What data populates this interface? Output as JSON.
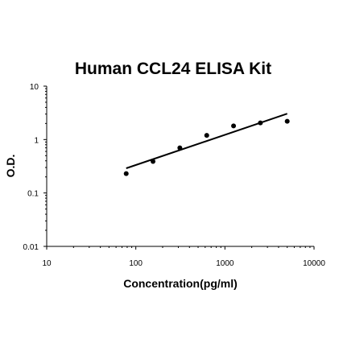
{
  "chart_data": {
    "type": "scatter",
    "title": "Human CCL24 ELISA Kit",
    "xlabel": "Concentration(pg/ml)",
    "ylabel": "O.D.",
    "x_scale": "log",
    "y_scale": "log",
    "xlim": [
      10,
      10000
    ],
    "ylim": [
      0.01,
      10
    ],
    "x_ticks": [
      10,
      100,
      1000,
      10000
    ],
    "x_tick_labels": [
      "10",
      "100",
      "1000",
      "10000"
    ],
    "y_ticks": [
      0.01,
      0.1,
      1,
      10
    ],
    "y_tick_labels": [
      "0.01",
      "0.1",
      "1",
      "10"
    ],
    "grid": false,
    "legend": "none",
    "series": [
      {
        "x": [
          78,
          156,
          312,
          625,
          1250,
          2500,
          5000
        ],
        "y": [
          0.23,
          0.39,
          0.7,
          1.2,
          1.8,
          2.05,
          2.2
        ]
      }
    ],
    "fit_line": {
      "x": [
        78,
        5000
      ],
      "y": [
        0.29,
        3.05
      ]
    },
    "colors": {
      "points": "#000000",
      "line": "#000000",
      "axes": "#000000",
      "text": "#000000"
    }
  }
}
